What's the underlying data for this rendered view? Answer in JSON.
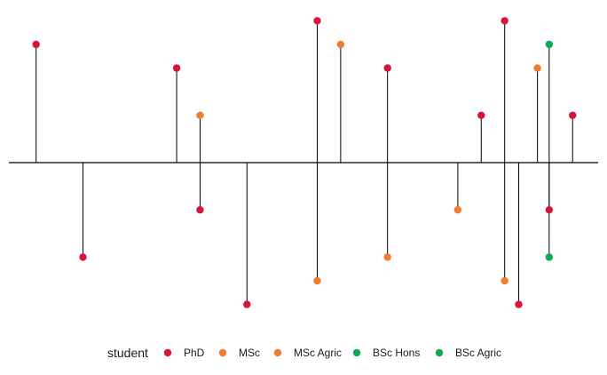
{
  "chart_data": {
    "type": "lollipop",
    "baseline": 0,
    "ylim": [
      -6.5,
      6.5
    ],
    "xlim": [
      0,
      24
    ],
    "grid": false,
    "legend": {
      "title": "student",
      "position": "bottom",
      "entries": [
        {
          "name": "PhD",
          "color": "#D7153A"
        },
        {
          "name": "MSc",
          "color": "#F07C2E"
        },
        {
          "name": "MSc Agric",
          "color": "#F07C2E"
        },
        {
          "name": "BSc Hons",
          "color": "#0BAA50"
        },
        {
          "name": "BSc Agric",
          "color": "#0BAA50"
        }
      ]
    },
    "points": [
      {
        "x": 1.2,
        "y": 5,
        "series": "PhD"
      },
      {
        "x": 3.2,
        "y": -4,
        "series": "PhD"
      },
      {
        "x": 7.2,
        "y": 4,
        "series": "PhD"
      },
      {
        "x": 8.2,
        "y": 2,
        "series": "MSc"
      },
      {
        "x": 8.2,
        "y": -2,
        "series": "PhD"
      },
      {
        "x": 10.2,
        "y": -6,
        "series": "PhD"
      },
      {
        "x": 13.2,
        "y": 6,
        "series": "PhD"
      },
      {
        "x": 13.2,
        "y": -5,
        "series": "MSc"
      },
      {
        "x": 14.2,
        "y": 5,
        "series": "MSc"
      },
      {
        "x": 16.2,
        "y": 4,
        "series": "PhD"
      },
      {
        "x": 16.2,
        "y": -4,
        "series": "MSc"
      },
      {
        "x": 19.2,
        "y": -2,
        "series": "MSc"
      },
      {
        "x": 20.2,
        "y": 2,
        "series": "PhD"
      },
      {
        "x": 21.2,
        "y": 6,
        "series": "PhD"
      },
      {
        "x": 21.2,
        "y": -5,
        "series": "MSc"
      },
      {
        "x": 21.8,
        "y": -6,
        "series": "PhD"
      },
      {
        "x": 22.6,
        "y": 4,
        "series": "MSc"
      },
      {
        "x": 23.1,
        "y": 5,
        "series": "BSc Hons"
      },
      {
        "x": 23.1,
        "y": -2,
        "series": "PhD"
      },
      {
        "x": 23.1,
        "y": -4,
        "series": "BSc Hons"
      },
      {
        "x": 24.1,
        "y": 2,
        "series": "PhD"
      }
    ]
  }
}
